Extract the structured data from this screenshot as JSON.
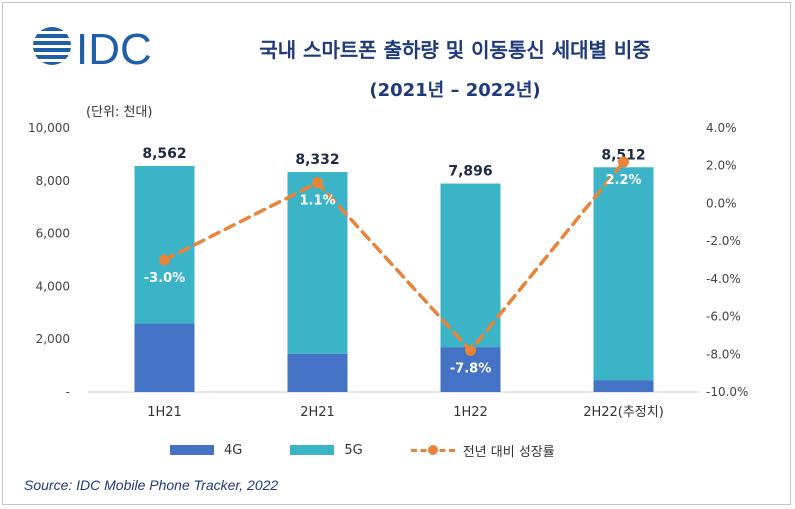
{
  "header": {
    "logo_text": "IDC",
    "title": "국내 스마트폰 출하량 및 이동통신 세대별 비중",
    "subtitle": "(2021년 – 2022년)",
    "unit_label": "(단위: 천대)"
  },
  "source": "Source: IDC Mobile Phone Tracker, 2022",
  "colors": {
    "series_4g": "#4472c4",
    "series_5g": "#3cb4c8",
    "growth_line": "#e8833a",
    "title": "#1f3a7a"
  },
  "chart_data": {
    "type": "bar",
    "stacked": true,
    "categories": [
      "1H21",
      "2H21",
      "1H22",
      "2H22(추정치)"
    ],
    "series": [
      {
        "name": "4G",
        "values": [
          2600,
          1450,
          1700,
          450
        ]
      },
      {
        "name": "5G",
        "values": [
          5962,
          6882,
          6196,
          8062
        ]
      }
    ],
    "totals": [
      8562,
      8332,
      7896,
      8512
    ],
    "total_labels": [
      "8,562",
      "8,332",
      "7,896",
      "8,512"
    ],
    "line_series": {
      "name": "전년 대비 성장률",
      "axis": "right",
      "values": [
        -3.0,
        1.1,
        -7.8,
        2.2
      ],
      "labels": [
        "-3.0%",
        "1.1%",
        "-7.8%",
        "2.2%"
      ]
    },
    "y_left": {
      "min": 0,
      "max": 10000,
      "ticks": [
        0,
        2000,
        4000,
        6000,
        8000,
        10000
      ],
      "tick_labels": [
        "-",
        "2,000",
        "4,000",
        "6,000",
        "8,000",
        "10,000"
      ]
    },
    "y_right": {
      "min": -10,
      "max": 4,
      "ticks": [
        -10,
        -8,
        -6,
        -4,
        -2,
        0,
        2,
        4
      ],
      "tick_labels": [
        "-10.0%",
        "-8.0%",
        "-6.0%",
        "-4.0%",
        "-2.0%",
        "0.0%",
        "2.0%",
        "4.0%"
      ]
    },
    "legend": [
      "4G",
      "5G",
      "전년 대비 성장률"
    ],
    "legend_position": "bottom",
    "grid": false
  }
}
